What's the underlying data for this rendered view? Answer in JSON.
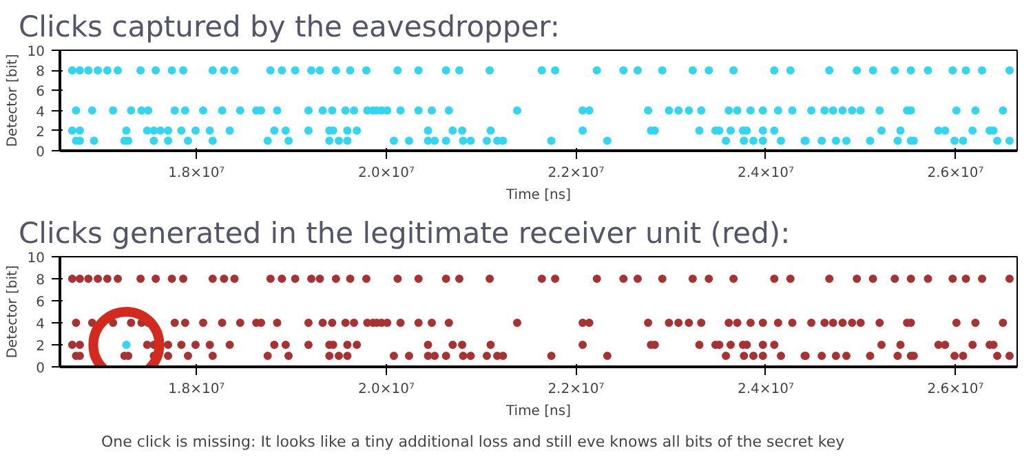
{
  "chart_data": [
    {
      "type": "scatter",
      "title": "Clicks captured by the eavesdropper:",
      "xlabel": "Time [ns]",
      "ylabel": "Detector [bit]",
      "marker": "circle",
      "xlim": [
        16560000.0,
        26650000.0
      ],
      "ylim": [
        0,
        10
      ],
      "xticks": [
        {
          "value": 18000000.0,
          "label": "1.8×10⁷"
        },
        {
          "value": 20000000.0,
          "label": "2.0×10⁷"
        },
        {
          "value": 22000000.0,
          "label": "2.2×10⁷"
        },
        {
          "value": 24000000.0,
          "label": "2.4×10⁷"
        },
        {
          "value": 26000000.0,
          "label": "2.6×10⁷"
        }
      ],
      "yticks": [
        0,
        2,
        4,
        6,
        8,
        10
      ],
      "series": [
        {
          "color": "#33d6f0",
          "x": [
            16690000.0,
            16770000.0,
            16860000.0,
            16960000.0,
            17060000.0,
            17170000.0,
            17410000.0,
            17570000.0,
            17740000.0,
            17860000.0,
            18170000.0,
            18290000.0,
            18400000.0,
            18780000.0,
            18900000.0,
            19040000.0,
            19210000.0,
            19300000.0,
            19470000.0,
            19620000.0,
            19790000.0,
            20120000.0,
            20340000.0,
            20630000.0,
            20770000.0,
            21090000.0,
            21640000.0,
            21780000.0,
            22220000.0,
            22500000.0,
            22650000.0,
            22910000.0,
            23230000.0,
            23400000.0,
            23660000.0,
            24090000.0,
            24260000.0,
            24670000.0,
            24960000.0,
            25130000.0,
            25360000.0,
            25530000.0,
            25710000.0,
            25970000.0,
            26110000.0,
            26280000.0,
            26570000.0,
            16730000.0,
            16900000.0,
            17120000.0,
            17310000.0,
            17420000.0,
            17490000.0,
            17770000.0,
            17880000.0,
            18070000.0,
            18270000.0,
            18460000.0,
            18630000.0,
            18680000.0,
            18850000.0,
            19180000.0,
            19330000.0,
            19430000.0,
            19570000.0,
            19660000.0,
            19800000.0,
            19860000.0,
            19900000.0,
            19950000.0,
            20010000.0,
            20150000.0,
            20340000.0,
            20480000.0,
            20660000.0,
            21380000.0,
            22070000.0,
            22140000.0,
            22760000.0,
            22980000.0,
            23080000.0,
            23190000.0,
            23320000.0,
            23610000.0,
            23700000.0,
            23840000.0,
            23970000.0,
            24130000.0,
            24280000.0,
            24480000.0,
            24620000.0,
            24710000.0,
            24810000.0,
            24910000.0,
            25000000.0,
            25200000.0,
            25490000.0,
            25530000.0,
            26010000.0,
            26210000.0,
            26500000.0,
            16690000.0,
            16770000.0,
            17260000.0,
            17480000.0,
            17550000.0,
            17620000.0,
            17700000.0,
            17840000.0,
            17990000.0,
            18140000.0,
            18350000.0,
            18820000.0,
            18940000.0,
            19180000.0,
            19400000.0,
            19440000.0,
            19590000.0,
            19690000.0,
            20440000.0,
            20700000.0,
            20800000.0,
            21100000.0,
            22070000.0,
            22790000.0,
            22830000.0,
            23300000.0,
            23470000.0,
            23510000.0,
            23630000.0,
            23760000.0,
            23800000.0,
            23970000.0,
            24090000.0,
            25220000.0,
            25420000.0,
            25820000.0,
            25890000.0,
            26180000.0,
            26360000.0,
            26400000.0,
            16730000.0,
            16770000.0,
            16920000.0,
            17240000.0,
            17280000.0,
            17550000.0,
            17700000.0,
            17910000.0,
            18170000.0,
            18750000.0,
            18970000.0,
            19400000.0,
            19500000.0,
            19590000.0,
            20080000.0,
            20240000.0,
            20440000.0,
            20510000.0,
            20630000.0,
            20810000.0,
            20890000.0,
            21060000.0,
            21170000.0,
            21230000.0,
            21740000.0,
            22330000.0,
            23580000.0,
            23770000.0,
            23870000.0,
            23970000.0,
            24160000.0,
            24410000.0,
            24420000.0,
            24590000.0,
            24740000.0,
            24850000.0,
            25100000.0,
            25390000.0,
            25530000.0,
            25560000.0,
            25990000.0,
            26080000.0,
            26440000.0,
            26570000.0
          ],
          "values": [
            8,
            8,
            8,
            8,
            8,
            8,
            8,
            8,
            8,
            8,
            8,
            8,
            8,
            8,
            8,
            8,
            8,
            8,
            8,
            8,
            8,
            8,
            8,
            8,
            8,
            8,
            8,
            8,
            8,
            8,
            8,
            8,
            8,
            8,
            8,
            8,
            8,
            8,
            8,
            8,
            8,
            8,
            8,
            8,
            8,
            8,
            8,
            4,
            4,
            4,
            4,
            4,
            4,
            4,
            4,
            4,
            4,
            4,
            4,
            4,
            4,
            4,
            4,
            4,
            4,
            4,
            4,
            4,
            4,
            4,
            4,
            4,
            4,
            4,
            4,
            4,
            4,
            4,
            4,
            4,
            4,
            4,
            4,
            4,
            4,
            4,
            4,
            4,
            4,
            4,
            4,
            4,
            4,
            4,
            4,
            4,
            4,
            4,
            4,
            4,
            4,
            2,
            2,
            2,
            2,
            2,
            2,
            2,
            2,
            2,
            2,
            2,
            2,
            2,
            2,
            2,
            2,
            2,
            2,
            2,
            2,
            2,
            2,
            2,
            2,
            2,
            2,
            2,
            2,
            2,
            2,
            2,
            2,
            2,
            2,
            2,
            2,
            2,
            2,
            2,
            2,
            1,
            1,
            1,
            1,
            1,
            1,
            1,
            1,
            1,
            1,
            1,
            1,
            1,
            1,
            1,
            1,
            1,
            1,
            1,
            1,
            1,
            1,
            1,
            1,
            1,
            1,
            1,
            1,
            1,
            1,
            1,
            1,
            1,
            1,
            1,
            1,
            1,
            1,
            1,
            1,
            1,
            1,
            1,
            1
          ]
        }
      ]
    },
    {
      "type": "scatter",
      "title": "Clicks generated in the legitimate receiver unit (red):",
      "xlabel": "Time [ns]",
      "ylabel": "Detector [bit]",
      "marker": "circle",
      "xlim": [
        16560000.0,
        26650000.0
      ],
      "ylim": [
        0,
        10
      ],
      "xticks": [
        {
          "value": 18000000.0,
          "label": "1.8×10⁷"
        },
        {
          "value": 20000000.0,
          "label": "2.0×10⁷"
        },
        {
          "value": 22000000.0,
          "label": "2.2×10⁷"
        },
        {
          "value": 24000000.0,
          "label": "2.4×10⁷"
        },
        {
          "value": 26000000.0,
          "label": "2.6×10⁷"
        }
      ],
      "yticks": [
        0,
        2,
        4,
        6,
        8,
        10
      ],
      "annotations": [
        "One click is missing: It looks like a tiny additional loss and still eve knows all bits of the secret key"
      ],
      "series": [
        {
          "color": "#a83232",
          "x": [
            16690000.0,
            16770000.0,
            16860000.0,
            16960000.0,
            17060000.0,
            17170000.0,
            17410000.0,
            17570000.0,
            17740000.0,
            17860000.0,
            18170000.0,
            18290000.0,
            18400000.0,
            18780000.0,
            18900000.0,
            19040000.0,
            19210000.0,
            19300000.0,
            19470000.0,
            19620000.0,
            19790000.0,
            20120000.0,
            20340000.0,
            20630000.0,
            20770000.0,
            21090000.0,
            21640000.0,
            21780000.0,
            22220000.0,
            22500000.0,
            22650000.0,
            22910000.0,
            23230000.0,
            23400000.0,
            23660000.0,
            24090000.0,
            24260000.0,
            24670000.0,
            24960000.0,
            25130000.0,
            25360000.0,
            25530000.0,
            25710000.0,
            25970000.0,
            26110000.0,
            26280000.0,
            26570000.0,
            16730000.0,
            16900000.0,
            17120000.0,
            17310000.0,
            17420000.0,
            17490000.0,
            17770000.0,
            17880000.0,
            18070000.0,
            18270000.0,
            18460000.0,
            18630000.0,
            18680000.0,
            18850000.0,
            19180000.0,
            19330000.0,
            19430000.0,
            19570000.0,
            19660000.0,
            19800000.0,
            19860000.0,
            19900000.0,
            19950000.0,
            20010000.0,
            20150000.0,
            20340000.0,
            20480000.0,
            20660000.0,
            21380000.0,
            22070000.0,
            22140000.0,
            22760000.0,
            22980000.0,
            23080000.0,
            23190000.0,
            23320000.0,
            23610000.0,
            23700000.0,
            23840000.0,
            23970000.0,
            24130000.0,
            24280000.0,
            24480000.0,
            24620000.0,
            24710000.0,
            24810000.0,
            24910000.0,
            25000000.0,
            25200000.0,
            25490000.0,
            25530000.0,
            26010000.0,
            26210000.0,
            26500000.0,
            16690000.0,
            16770000.0,
            17480000.0,
            17550000.0,
            17620000.0,
            17700000.0,
            17840000.0,
            17990000.0,
            18140000.0,
            18350000.0,
            18820000.0,
            18940000.0,
            19180000.0,
            19400000.0,
            19440000.0,
            19590000.0,
            19690000.0,
            20440000.0,
            20700000.0,
            20800000.0,
            21100000.0,
            22070000.0,
            22790000.0,
            22830000.0,
            23300000.0,
            23470000.0,
            23510000.0,
            23630000.0,
            23760000.0,
            23800000.0,
            23970000.0,
            24090000.0,
            25220000.0,
            25420000.0,
            25820000.0,
            25890000.0,
            26180000.0,
            26360000.0,
            26400000.0,
            16730000.0,
            16770000.0,
            16920000.0,
            17240000.0,
            17280000.0,
            17550000.0,
            17700000.0,
            17910000.0,
            18170000.0,
            18750000.0,
            18970000.0,
            19400000.0,
            19500000.0,
            19590000.0,
            20080000.0,
            20240000.0,
            20440000.0,
            20510000.0,
            20630000.0,
            20810000.0,
            20890000.0,
            21060000.0,
            21170000.0,
            21230000.0,
            21740000.0,
            22330000.0,
            23580000.0,
            23770000.0,
            23870000.0,
            23970000.0,
            24160000.0,
            24410000.0,
            24420000.0,
            24590000.0,
            24740000.0,
            24850000.0,
            25100000.0,
            25390000.0,
            25530000.0,
            25560000.0,
            25990000.0,
            26080000.0,
            26440000.0,
            26570000.0
          ],
          "values": [
            8,
            8,
            8,
            8,
            8,
            8,
            8,
            8,
            8,
            8,
            8,
            8,
            8,
            8,
            8,
            8,
            8,
            8,
            8,
            8,
            8,
            8,
            8,
            8,
            8,
            8,
            8,
            8,
            8,
            8,
            8,
            8,
            8,
            8,
            8,
            8,
            8,
            8,
            8,
            8,
            8,
            8,
            8,
            8,
            8,
            8,
            8,
            4,
            4,
            4,
            4,
            4,
            4,
            4,
            4,
            4,
            4,
            4,
            4,
            4,
            4,
            4,
            4,
            4,
            4,
            4,
            4,
            4,
            4,
            4,
            4,
            4,
            4,
            4,
            4,
            4,
            4,
            4,
            4,
            4,
            4,
            4,
            4,
            4,
            4,
            4,
            4,
            4,
            4,
            4,
            4,
            4,
            4,
            4,
            4,
            4,
            4,
            4,
            4,
            4,
            4,
            2,
            2,
            2,
            2,
            2,
            2,
            2,
            2,
            2,
            2,
            2,
            2,
            2,
            2,
            2,
            2,
            2,
            2,
            2,
            2,
            2,
            2,
            2,
            2,
            2,
            2,
            2,
            2,
            2,
            2,
            2,
            2,
            2,
            2,
            2,
            2,
            2,
            2,
            2,
            1,
            1,
            1,
            1,
            1,
            1,
            1,
            1,
            1,
            1,
            1,
            1,
            1,
            1,
            1,
            1,
            1,
            1,
            1,
            1,
            1,
            1,
            1,
            1,
            1,
            1,
            1,
            1,
            1,
            1,
            1,
            1,
            1,
            1,
            1,
            1,
            1,
            1,
            1,
            1,
            1,
            1,
            1,
            1
          ]
        },
        {
          "color": "#33d6f0",
          "x": [
            17260000.0
          ],
          "values": [
            2
          ]
        }
      ]
    }
  ]
}
